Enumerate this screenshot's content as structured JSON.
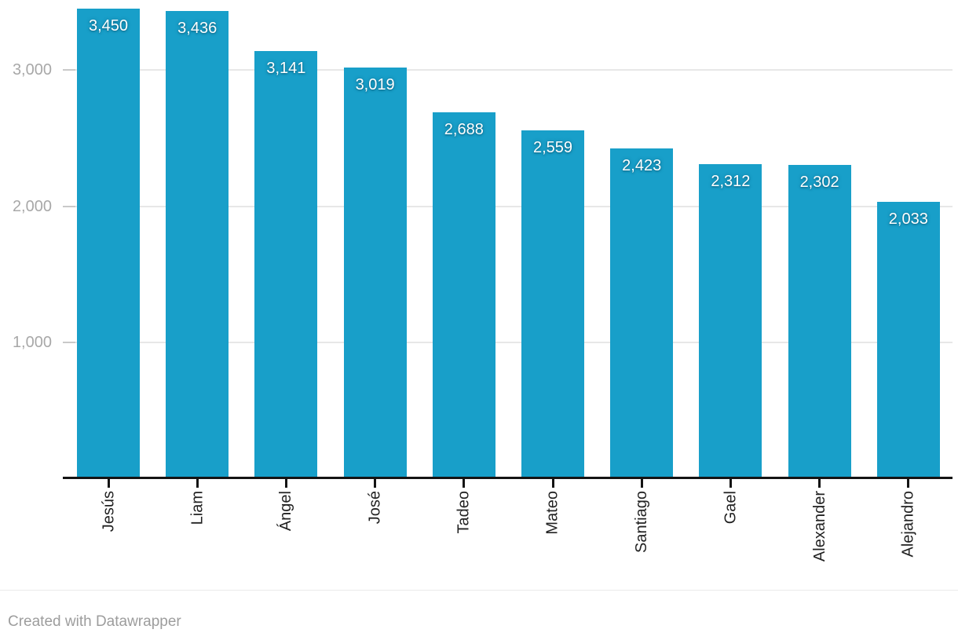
{
  "chart_data": {
    "type": "bar",
    "categories": [
      "Jesús",
      "Liam",
      "Ángel",
      "José",
      "Tadeo",
      "Mateo",
      "Santiago",
      "Gael",
      "Alexander",
      "Alejandro"
    ],
    "values": [
      3450,
      3436,
      3141,
      3019,
      2688,
      2559,
      2423,
      2312,
      2302,
      2033
    ],
    "value_labels": [
      "3,450",
      "3,436",
      "3,141",
      "3,019",
      "2,688",
      "2,559",
      "2,423",
      "2,312",
      "2,302",
      "2,033"
    ],
    "title": "",
    "xlabel": "",
    "ylabel": "",
    "ylim": [
      0,
      3516
    ],
    "y_ticks": [
      {
        "value": 1000,
        "label": "1,000"
      },
      {
        "value": 2000,
        "label": "2,000"
      },
      {
        "value": 3000,
        "label": "3,000"
      }
    ],
    "grid": true,
    "legend": "none",
    "bar_color": "#189fc9",
    "value_label_position": "inside-top",
    "x_label_rotation": -90
  },
  "colors": {
    "bar": "#189fc9",
    "axis": "#141414",
    "gridline": "#e7e7e7",
    "y_tick_text": "#a8a8a8",
    "x_tick_text": "#222222",
    "value_text": "#ffffff",
    "footer_text": "#9d9d9d"
  },
  "footer": {
    "credit": "Created with Datawrapper"
  }
}
